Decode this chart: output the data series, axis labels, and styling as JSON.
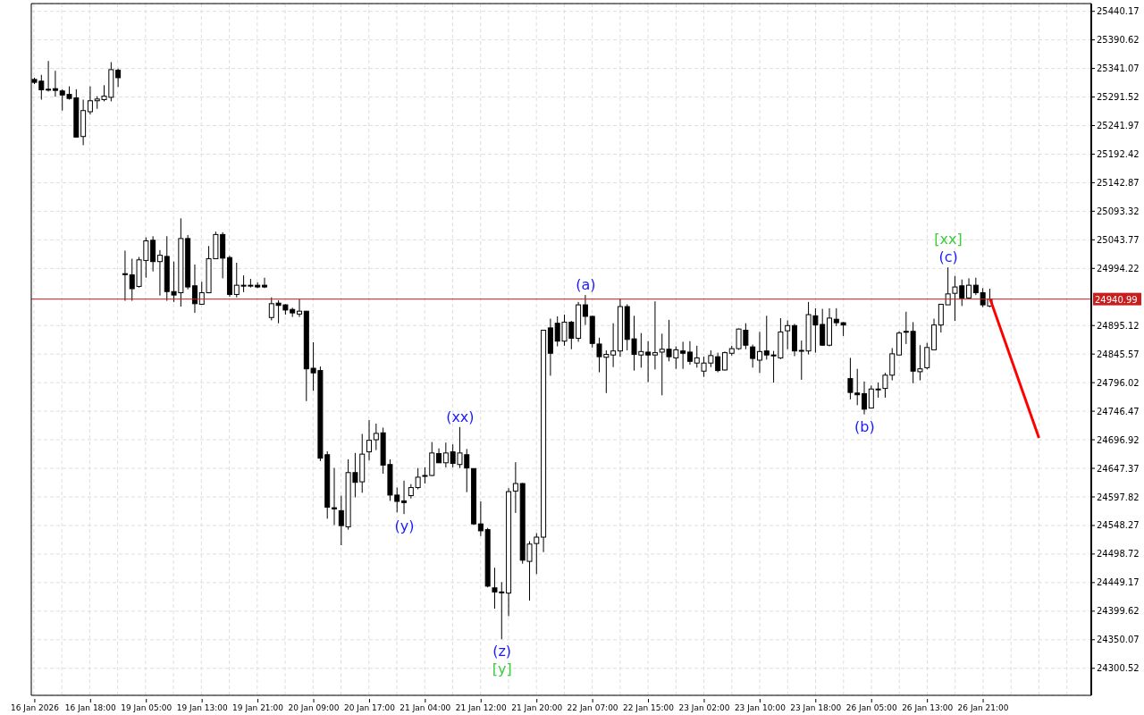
{
  "chart_data": {
    "type": "candlestick",
    "categories": [
      "16 Jan 2026",
      null,
      null,
      null,
      null,
      null,
      null,
      null,
      "16 Jan 18:00",
      null,
      null,
      null,
      null,
      null,
      null,
      null,
      "19 Jan 05:00",
      null,
      null,
      null,
      null,
      null,
      null,
      null,
      "19 Jan 13:00",
      null,
      null,
      null,
      null,
      null,
      null,
      null,
      "19 Jan 21:00",
      null,
      null,
      null,
      null,
      null,
      null,
      null,
      "20 Jan 09:00",
      null,
      null,
      null,
      null,
      null,
      null,
      null,
      "20 Jan 17:00",
      null,
      null,
      null,
      null,
      null,
      null,
      null,
      "21 Jan 04:00",
      null,
      null,
      null,
      null,
      null,
      null,
      null,
      "21 Jan 12:00",
      null,
      null,
      null,
      null,
      null,
      null,
      null,
      "21 Jan 20:00",
      null,
      null,
      null,
      null,
      null,
      null,
      null,
      "22 Jan 07:00",
      null,
      null,
      null,
      null,
      null,
      null,
      null,
      "22 Jan 15:00",
      null,
      null,
      null,
      null,
      null,
      null,
      null,
      "23 Jan 02:00",
      null,
      null,
      null,
      null,
      null,
      null,
      null,
      "23 Jan 10:00",
      null,
      null,
      null,
      null,
      null,
      null,
      null,
      "23 Jan 18:00",
      null,
      null,
      null,
      null,
      null,
      null,
      null,
      "26 Jan 05:00",
      null,
      null,
      null,
      null,
      null,
      null,
      null,
      "26 Jan 13:00",
      null,
      null,
      null,
      null,
      null,
      null,
      null,
      "26 Jan 21:00",
      null,
      null,
      null,
      null,
      null,
      null,
      null,
      null,
      null,
      null,
      null,
      null,
      null,
      null,
      null
    ],
    "ohlc": [
      [
        25322,
        25325,
        25314,
        25317
      ],
      [
        25319,
        25330,
        25287,
        25304
      ],
      [
        25305,
        25354,
        25301,
        25304
      ],
      [
        25306,
        25337,
        25292,
        25303
      ],
      [
        25302,
        25305,
        25268,
        25295
      ],
      [
        25296,
        25310,
        25287,
        25289
      ],
      [
        25290,
        25305,
        25222,
        25222
      ],
      [
        25223,
        25287,
        25208,
        25268
      ],
      [
        25266,
        25310,
        25261,
        25285
      ],
      [
        25285,
        25293,
        25271,
        25288
      ],
      [
        25287,
        25312,
        25284,
        25293
      ],
      [
        25291,
        25352,
        25284,
        25339
      ],
      [
        25338,
        25341,
        25309,
        25325
      ],
      [
        24985,
        25025,
        24938,
        24984
      ],
      [
        24983,
        25011,
        24938,
        24959
      ],
      [
        24963,
        25014,
        24961,
        25009
      ],
      [
        25008,
        25048,
        24978,
        25042
      ],
      [
        25043,
        25050,
        24989,
        25006
      ],
      [
        25006,
        25026,
        24947,
        25017
      ],
      [
        25015,
        25050,
        24938,
        24954
      ],
      [
        24954,
        25006,
        24936,
        24948
      ],
      [
        24952,
        25081,
        24928,
        25046
      ],
      [
        25046,
        25052,
        24958,
        24962
      ],
      [
        24964,
        25001,
        24917,
        24933
      ],
      [
        24932,
        24971,
        24931,
        24952
      ],
      [
        24952,
        25033,
        24951,
        25011
      ],
      [
        25011,
        25058,
        25011,
        25053
      ],
      [
        25053,
        25057,
        24977,
        25012
      ],
      [
        25013,
        25016,
        24945,
        24949
      ],
      [
        24949,
        25004,
        24944,
        24965
      ],
      [
        24965,
        24982,
        24953,
        24964
      ],
      [
        24964,
        24976,
        24961,
        24965
      ],
      [
        24965,
        24970,
        24960,
        24962
      ],
      [
        24965,
        24978,
        24960,
        24962
      ],
      [
        24909,
        24944,
        24904,
        24933
      ],
      [
        24934,
        24939,
        24899,
        24930
      ],
      [
        24931,
        24932,
        24914,
        24922
      ],
      [
        24923,
        24926,
        24910,
        24917
      ],
      [
        24915,
        24941,
        24910,
        24920
      ],
      [
        24920,
        24920,
        24764,
        24820
      ],
      [
        24821,
        24866,
        24782,
        24813
      ],
      [
        24817,
        24824,
        24660,
        24665
      ],
      [
        24671,
        24677,
        24560,
        24580
      ],
      [
        24579,
        24648,
        24549,
        24577
      ],
      [
        24574,
        24600,
        24514,
        24548
      ],
      [
        24546,
        24663,
        24541,
        24640
      ],
      [
        24640,
        24674,
        24597,
        24623
      ],
      [
        24624,
        24707,
        24605,
        24672
      ],
      [
        24676,
        24731,
        24661,
        24696
      ],
      [
        24697,
        24725,
        24679,
        24708
      ],
      [
        24709,
        24718,
        24638,
        24653
      ],
      [
        24654,
        24663,
        24591,
        24601
      ],
      [
        24601,
        24614,
        24571,
        24590
      ],
      [
        24591,
        24626,
        24568,
        24588
      ],
      [
        24600,
        24620,
        24595,
        24614
      ],
      [
        24614,
        24648,
        24611,
        24632
      ],
      [
        24634,
        24649,
        24621,
        24635
      ],
      [
        24635,
        24693,
        24634,
        24674
      ],
      [
        24673,
        24682,
        24657,
        24657
      ],
      [
        24657,
        24692,
        24649,
        24674
      ],
      [
        24676,
        24689,
        24649,
        24656
      ],
      [
        24654,
        24719,
        24648,
        24674
      ],
      [
        24671,
        24681,
        24606,
        24648
      ],
      [
        24647,
        24647,
        24549,
        24551
      ],
      [
        24551,
        24590,
        24530,
        24539
      ],
      [
        24541,
        24544,
        24441,
        24443
      ],
      [
        24440,
        24475,
        24404,
        24433
      ],
      [
        24433,
        24450,
        24351,
        24432
      ],
      [
        24431,
        24613,
        24391,
        24607
      ],
      [
        24608,
        24658,
        24570,
        24621
      ],
      [
        24621,
        24622,
        24482,
        24488
      ],
      [
        24486,
        24521,
        24418,
        24516
      ],
      [
        24517,
        24535,
        24464,
        24528
      ],
      [
        24528,
        24887,
        24502,
        24887
      ],
      [
        24891,
        24907,
        24808,
        24847
      ],
      [
        24899,
        24911,
        24859,
        24868
      ],
      [
        24868,
        24914,
        24860,
        24901
      ],
      [
        24901,
        24903,
        24854,
        24873
      ],
      [
        24873,
        24936,
        24867,
        24931
      ],
      [
        24931,
        24948,
        24896,
        24911
      ],
      [
        24911,
        24912,
        24857,
        24864
      ],
      [
        24863,
        24874,
        24814,
        24841
      ],
      [
        24840,
        24852,
        24778,
        24845
      ],
      [
        24844,
        24899,
        24823,
        24851
      ],
      [
        24851,
        24941,
        24841,
        24928
      ],
      [
        24928,
        24932,
        24852,
        24871
      ],
      [
        24872,
        24912,
        24817,
        24845
      ],
      [
        24844,
        24882,
        24822,
        24850
      ],
      [
        24849,
        24868,
        24797,
        24844
      ],
      [
        24844,
        24937,
        24819,
        24848
      ],
      [
        24849,
        24881,
        24774,
        24854
      ],
      [
        24854,
        24905,
        24833,
        24841
      ],
      [
        24839,
        24859,
        24820,
        24853
      ],
      [
        24851,
        24867,
        24820,
        24847
      ],
      [
        24849,
        24868,
        24827,
        24833
      ],
      [
        24830,
        24860,
        24822,
        24839
      ],
      [
        24816,
        24841,
        24806,
        24830
      ],
      [
        24830,
        24852,
        24823,
        24843
      ],
      [
        24841,
        24848,
        24814,
        24817
      ],
      [
        24818,
        24850,
        24817,
        24848
      ],
      [
        24847,
        24860,
        24843,
        24855
      ],
      [
        24855,
        24890,
        24853,
        24889
      ],
      [
        24887,
        24899,
        24854,
        24861
      ],
      [
        24858,
        24862,
        24822,
        24838
      ],
      [
        24835,
        24884,
        24813,
        24850
      ],
      [
        24851,
        24912,
        24836,
        24844
      ],
      [
        24844,
        24851,
        24796,
        24843
      ],
      [
        24839,
        24908,
        24837,
        24884
      ],
      [
        24886,
        24904,
        24854,
        24895
      ],
      [
        24895,
        24898,
        24842,
        24851
      ],
      [
        24851,
        24869,
        24801,
        24852
      ],
      [
        24851,
        24936,
        24845,
        24914
      ],
      [
        24912,
        24925,
        24848,
        24896
      ],
      [
        24897,
        24924,
        24860,
        24861
      ],
      [
        24861,
        24925,
        24859,
        24908
      ],
      [
        24906,
        24925,
        24894,
        24900
      ],
      [
        24900,
        24901,
        24877,
        24896
      ],
      [
        24803,
        24839,
        24767,
        24779
      ],
      [
        24778,
        24820,
        24757,
        24775
      ],
      [
        24777,
        24798,
        24741,
        24750
      ],
      [
        24752,
        24791,
        24751,
        24785
      ],
      [
        24784,
        24796,
        24770,
        24785
      ],
      [
        24786,
        24813,
        24770,
        24809
      ],
      [
        24809,
        24856,
        24800,
        24846
      ],
      [
        24844,
        24885,
        24844,
        24882
      ],
      [
        24884,
        24919,
        24863,
        24885
      ],
      [
        24885,
        24901,
        24795,
        24816
      ],
      [
        24815,
        24861,
        24800,
        24820
      ],
      [
        24822,
        24865,
        24819,
        24857
      ],
      [
        24853,
        24907,
        24853,
        24896
      ],
      [
        24896,
        24932,
        24883,
        24932
      ],
      [
        24931,
        24996,
        24931,
        24950
      ],
      [
        24951,
        24981,
        24903,
        24962
      ],
      [
        24964,
        24975,
        24929,
        24943
      ],
      [
        24943,
        24977,
        24941,
        24965
      ],
      [
        24965,
        24978,
        24948,
        24952
      ],
      [
        24952,
        24960,
        24927,
        24931
      ],
      [
        24929,
        24959,
        24927,
        24941
      ],
      null,
      null,
      null,
      null,
      null,
      null,
      null,
      null,
      null,
      null,
      null,
      null,
      null,
      null
    ],
    "series": [
      {
        "type": "line",
        "color": "#ff0000",
        "values": [
          null,
          null,
          null,
          null,
          null,
          null,
          null,
          null,
          null,
          null,
          null,
          null,
          null,
          null,
          null,
          null,
          null,
          null,
          null,
          null,
          null,
          null,
          null,
          null,
          null,
          null,
          null,
          null,
          null,
          null,
          null,
          null,
          null,
          null,
          null,
          null,
          null,
          null,
          null,
          null,
          null,
          null,
          null,
          null,
          null,
          null,
          null,
          null,
          null,
          null,
          null,
          null,
          null,
          null,
          null,
          null,
          null,
          null,
          null,
          null,
          null,
          null,
          null,
          null,
          null,
          null,
          null,
          null,
          null,
          null,
          null,
          null,
          null,
          null,
          null,
          null,
          null,
          null,
          null,
          null,
          null,
          null,
          null,
          null,
          null,
          null,
          null,
          null,
          null,
          null,
          null,
          null,
          null,
          null,
          null,
          null,
          null,
          null,
          null,
          null,
          null,
          null,
          null,
          null,
          null,
          null,
          null,
          null,
          null,
          null,
          null,
          null,
          null,
          null,
          null,
          null,
          null,
          null,
          null,
          null,
          null,
          null,
          null,
          null,
          null,
          null,
          null,
          null,
          null,
          null,
          null,
          null,
          null,
          null,
          null,
          null,
          null,
          24941,
          null,
          null,
          null,
          null,
          null,
          null,
          24700,
          null,
          null,
          null,
          null,
          null,
          null,
          null
        ]
      }
    ],
    "ylim": [
      24253.6,
      25453.6
    ],
    "yticks": [
      24300.52,
      24350.07,
      24399.62,
      24449.17,
      24498.72,
      24548.27,
      24597.82,
      24647.37,
      24696.92,
      24746.47,
      24796.02,
      24845.57,
      24895.12,
      24994.22,
      25043.77,
      25093.32,
      25142.87,
      25192.42,
      25241.97,
      25291.52,
      25341.07,
      25390.62,
      25440.17
    ],
    "ref_lines": [
      {
        "axis": "y",
        "value": 24940.99,
        "label": "24940.99",
        "color": "#c81e1e"
      }
    ],
    "annotations": [
      {
        "text": "(y)",
        "y": 24568
      },
      {
        "text": "(xx)",
        "y": 24719
      },
      {
        "text": "(z)",
        "y": 24351
      },
      {
        "text": "[y]",
        "y": 24351
      },
      {
        "text": "(a)",
        "y": 24948
      },
      {
        "text": "(b)",
        "y": 24741
      },
      {
        "text": "(c)",
        "y": 24996
      },
      {
        "text": "[xx]",
        "y": 24996
      }
    ],
    "grid": true
  }
}
